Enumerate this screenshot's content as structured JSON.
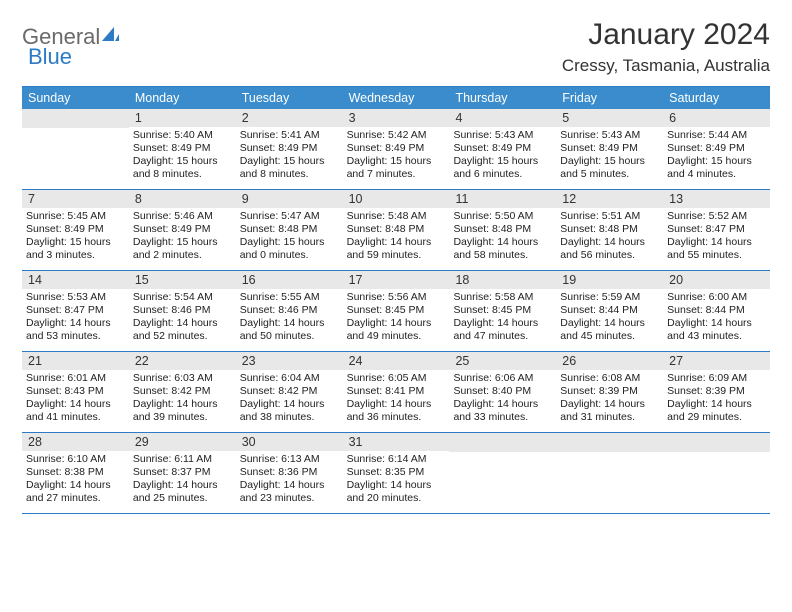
{
  "logo": {
    "part1": "General",
    "part2": "Blue"
  },
  "title": "January 2024",
  "location": "Cressy, Tasmania, Australia",
  "colors": {
    "header_bg": "#3a8ccc",
    "rule": "#2c7bc4",
    "daynum_bg": "#e8e8e8",
    "text": "#333333",
    "logo_gray": "#6a6a6a",
    "logo_blue": "#2c7bc4"
  },
  "dow": [
    "Sunday",
    "Monday",
    "Tuesday",
    "Wednesday",
    "Thursday",
    "Friday",
    "Saturday"
  ],
  "weeks": [
    [
      {
        "n": "",
        "sr": "",
        "ss": "",
        "dl": ""
      },
      {
        "n": "1",
        "sr": "5:40 AM",
        "ss": "8:49 PM",
        "dl": "15 hours and 8 minutes."
      },
      {
        "n": "2",
        "sr": "5:41 AM",
        "ss": "8:49 PM",
        "dl": "15 hours and 8 minutes."
      },
      {
        "n": "3",
        "sr": "5:42 AM",
        "ss": "8:49 PM",
        "dl": "15 hours and 7 minutes."
      },
      {
        "n": "4",
        "sr": "5:43 AM",
        "ss": "8:49 PM",
        "dl": "15 hours and 6 minutes."
      },
      {
        "n": "5",
        "sr": "5:43 AM",
        "ss": "8:49 PM",
        "dl": "15 hours and 5 minutes."
      },
      {
        "n": "6",
        "sr": "5:44 AM",
        "ss": "8:49 PM",
        "dl": "15 hours and 4 minutes."
      }
    ],
    [
      {
        "n": "7",
        "sr": "5:45 AM",
        "ss": "8:49 PM",
        "dl": "15 hours and 3 minutes."
      },
      {
        "n": "8",
        "sr": "5:46 AM",
        "ss": "8:49 PM",
        "dl": "15 hours and 2 minutes."
      },
      {
        "n": "9",
        "sr": "5:47 AM",
        "ss": "8:48 PM",
        "dl": "15 hours and 0 minutes."
      },
      {
        "n": "10",
        "sr": "5:48 AM",
        "ss": "8:48 PM",
        "dl": "14 hours and 59 minutes."
      },
      {
        "n": "11",
        "sr": "5:50 AM",
        "ss": "8:48 PM",
        "dl": "14 hours and 58 minutes."
      },
      {
        "n": "12",
        "sr": "5:51 AM",
        "ss": "8:48 PM",
        "dl": "14 hours and 56 minutes."
      },
      {
        "n": "13",
        "sr": "5:52 AM",
        "ss": "8:47 PM",
        "dl": "14 hours and 55 minutes."
      }
    ],
    [
      {
        "n": "14",
        "sr": "5:53 AM",
        "ss": "8:47 PM",
        "dl": "14 hours and 53 minutes."
      },
      {
        "n": "15",
        "sr": "5:54 AM",
        "ss": "8:46 PM",
        "dl": "14 hours and 52 minutes."
      },
      {
        "n": "16",
        "sr": "5:55 AM",
        "ss": "8:46 PM",
        "dl": "14 hours and 50 minutes."
      },
      {
        "n": "17",
        "sr": "5:56 AM",
        "ss": "8:45 PM",
        "dl": "14 hours and 49 minutes."
      },
      {
        "n": "18",
        "sr": "5:58 AM",
        "ss": "8:45 PM",
        "dl": "14 hours and 47 minutes."
      },
      {
        "n": "19",
        "sr": "5:59 AM",
        "ss": "8:44 PM",
        "dl": "14 hours and 45 minutes."
      },
      {
        "n": "20",
        "sr": "6:00 AM",
        "ss": "8:44 PM",
        "dl": "14 hours and 43 minutes."
      }
    ],
    [
      {
        "n": "21",
        "sr": "6:01 AM",
        "ss": "8:43 PM",
        "dl": "14 hours and 41 minutes."
      },
      {
        "n": "22",
        "sr": "6:03 AM",
        "ss": "8:42 PM",
        "dl": "14 hours and 39 minutes."
      },
      {
        "n": "23",
        "sr": "6:04 AM",
        "ss": "8:42 PM",
        "dl": "14 hours and 38 minutes."
      },
      {
        "n": "24",
        "sr": "6:05 AM",
        "ss": "8:41 PM",
        "dl": "14 hours and 36 minutes."
      },
      {
        "n": "25",
        "sr": "6:06 AM",
        "ss": "8:40 PM",
        "dl": "14 hours and 33 minutes."
      },
      {
        "n": "26",
        "sr": "6:08 AM",
        "ss": "8:39 PM",
        "dl": "14 hours and 31 minutes."
      },
      {
        "n": "27",
        "sr": "6:09 AM",
        "ss": "8:39 PM",
        "dl": "14 hours and 29 minutes."
      }
    ],
    [
      {
        "n": "28",
        "sr": "6:10 AM",
        "ss": "8:38 PM",
        "dl": "14 hours and 27 minutes."
      },
      {
        "n": "29",
        "sr": "6:11 AM",
        "ss": "8:37 PM",
        "dl": "14 hours and 25 minutes."
      },
      {
        "n": "30",
        "sr": "6:13 AM",
        "ss": "8:36 PM",
        "dl": "14 hours and 23 minutes."
      },
      {
        "n": "31",
        "sr": "6:14 AM",
        "ss": "8:35 PM",
        "dl": "14 hours and 20 minutes."
      },
      {
        "n": "",
        "sr": "",
        "ss": "",
        "dl": ""
      },
      {
        "n": "",
        "sr": "",
        "ss": "",
        "dl": ""
      },
      {
        "n": "",
        "sr": "",
        "ss": "",
        "dl": ""
      }
    ]
  ],
  "labels": {
    "sunrise": "Sunrise:",
    "sunset": "Sunset:",
    "daylight": "Daylight:"
  }
}
